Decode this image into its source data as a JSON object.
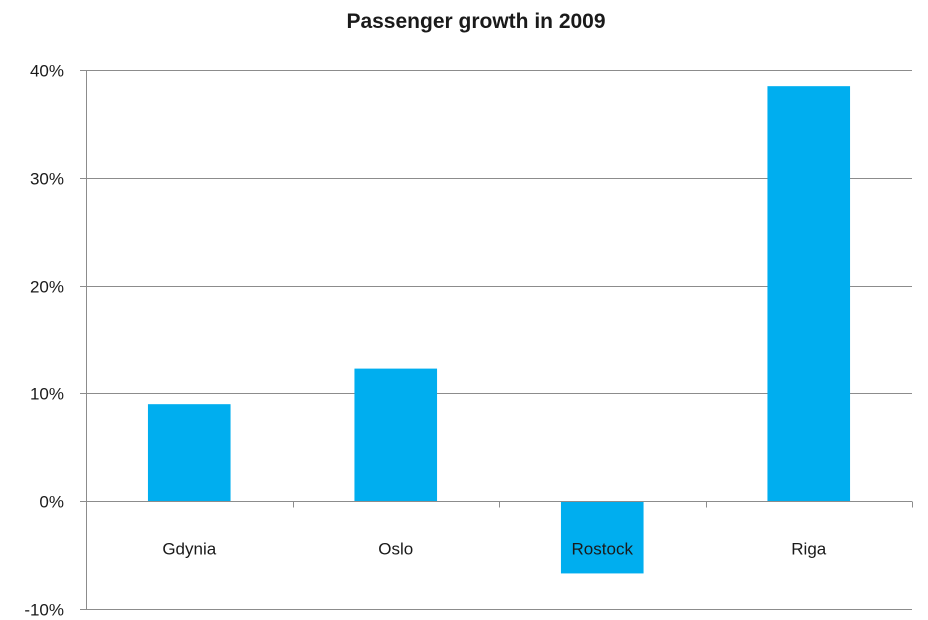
{
  "chart_data": {
    "type": "bar",
    "title": "Passenger growth in 2009",
    "xlabel": "",
    "ylabel": "",
    "categories": [
      "Gdynia",
      "Oslo",
      "Rostock",
      "Riga"
    ],
    "values": [
      0.09,
      0.123,
      -0.067,
      0.385
    ],
    "ylim": [
      -0.1,
      0.4
    ],
    "yticks": [
      -0.1,
      0,
      0.1,
      0.2,
      0.3,
      0.4
    ],
    "ytick_labels": [
      "-10%",
      "0%",
      "10%",
      "20%",
      "30%",
      "40%"
    ],
    "grid": true,
    "legend": "none",
    "bar_color": "#00AEEF",
    "grid_color": "#8c8c8c"
  }
}
